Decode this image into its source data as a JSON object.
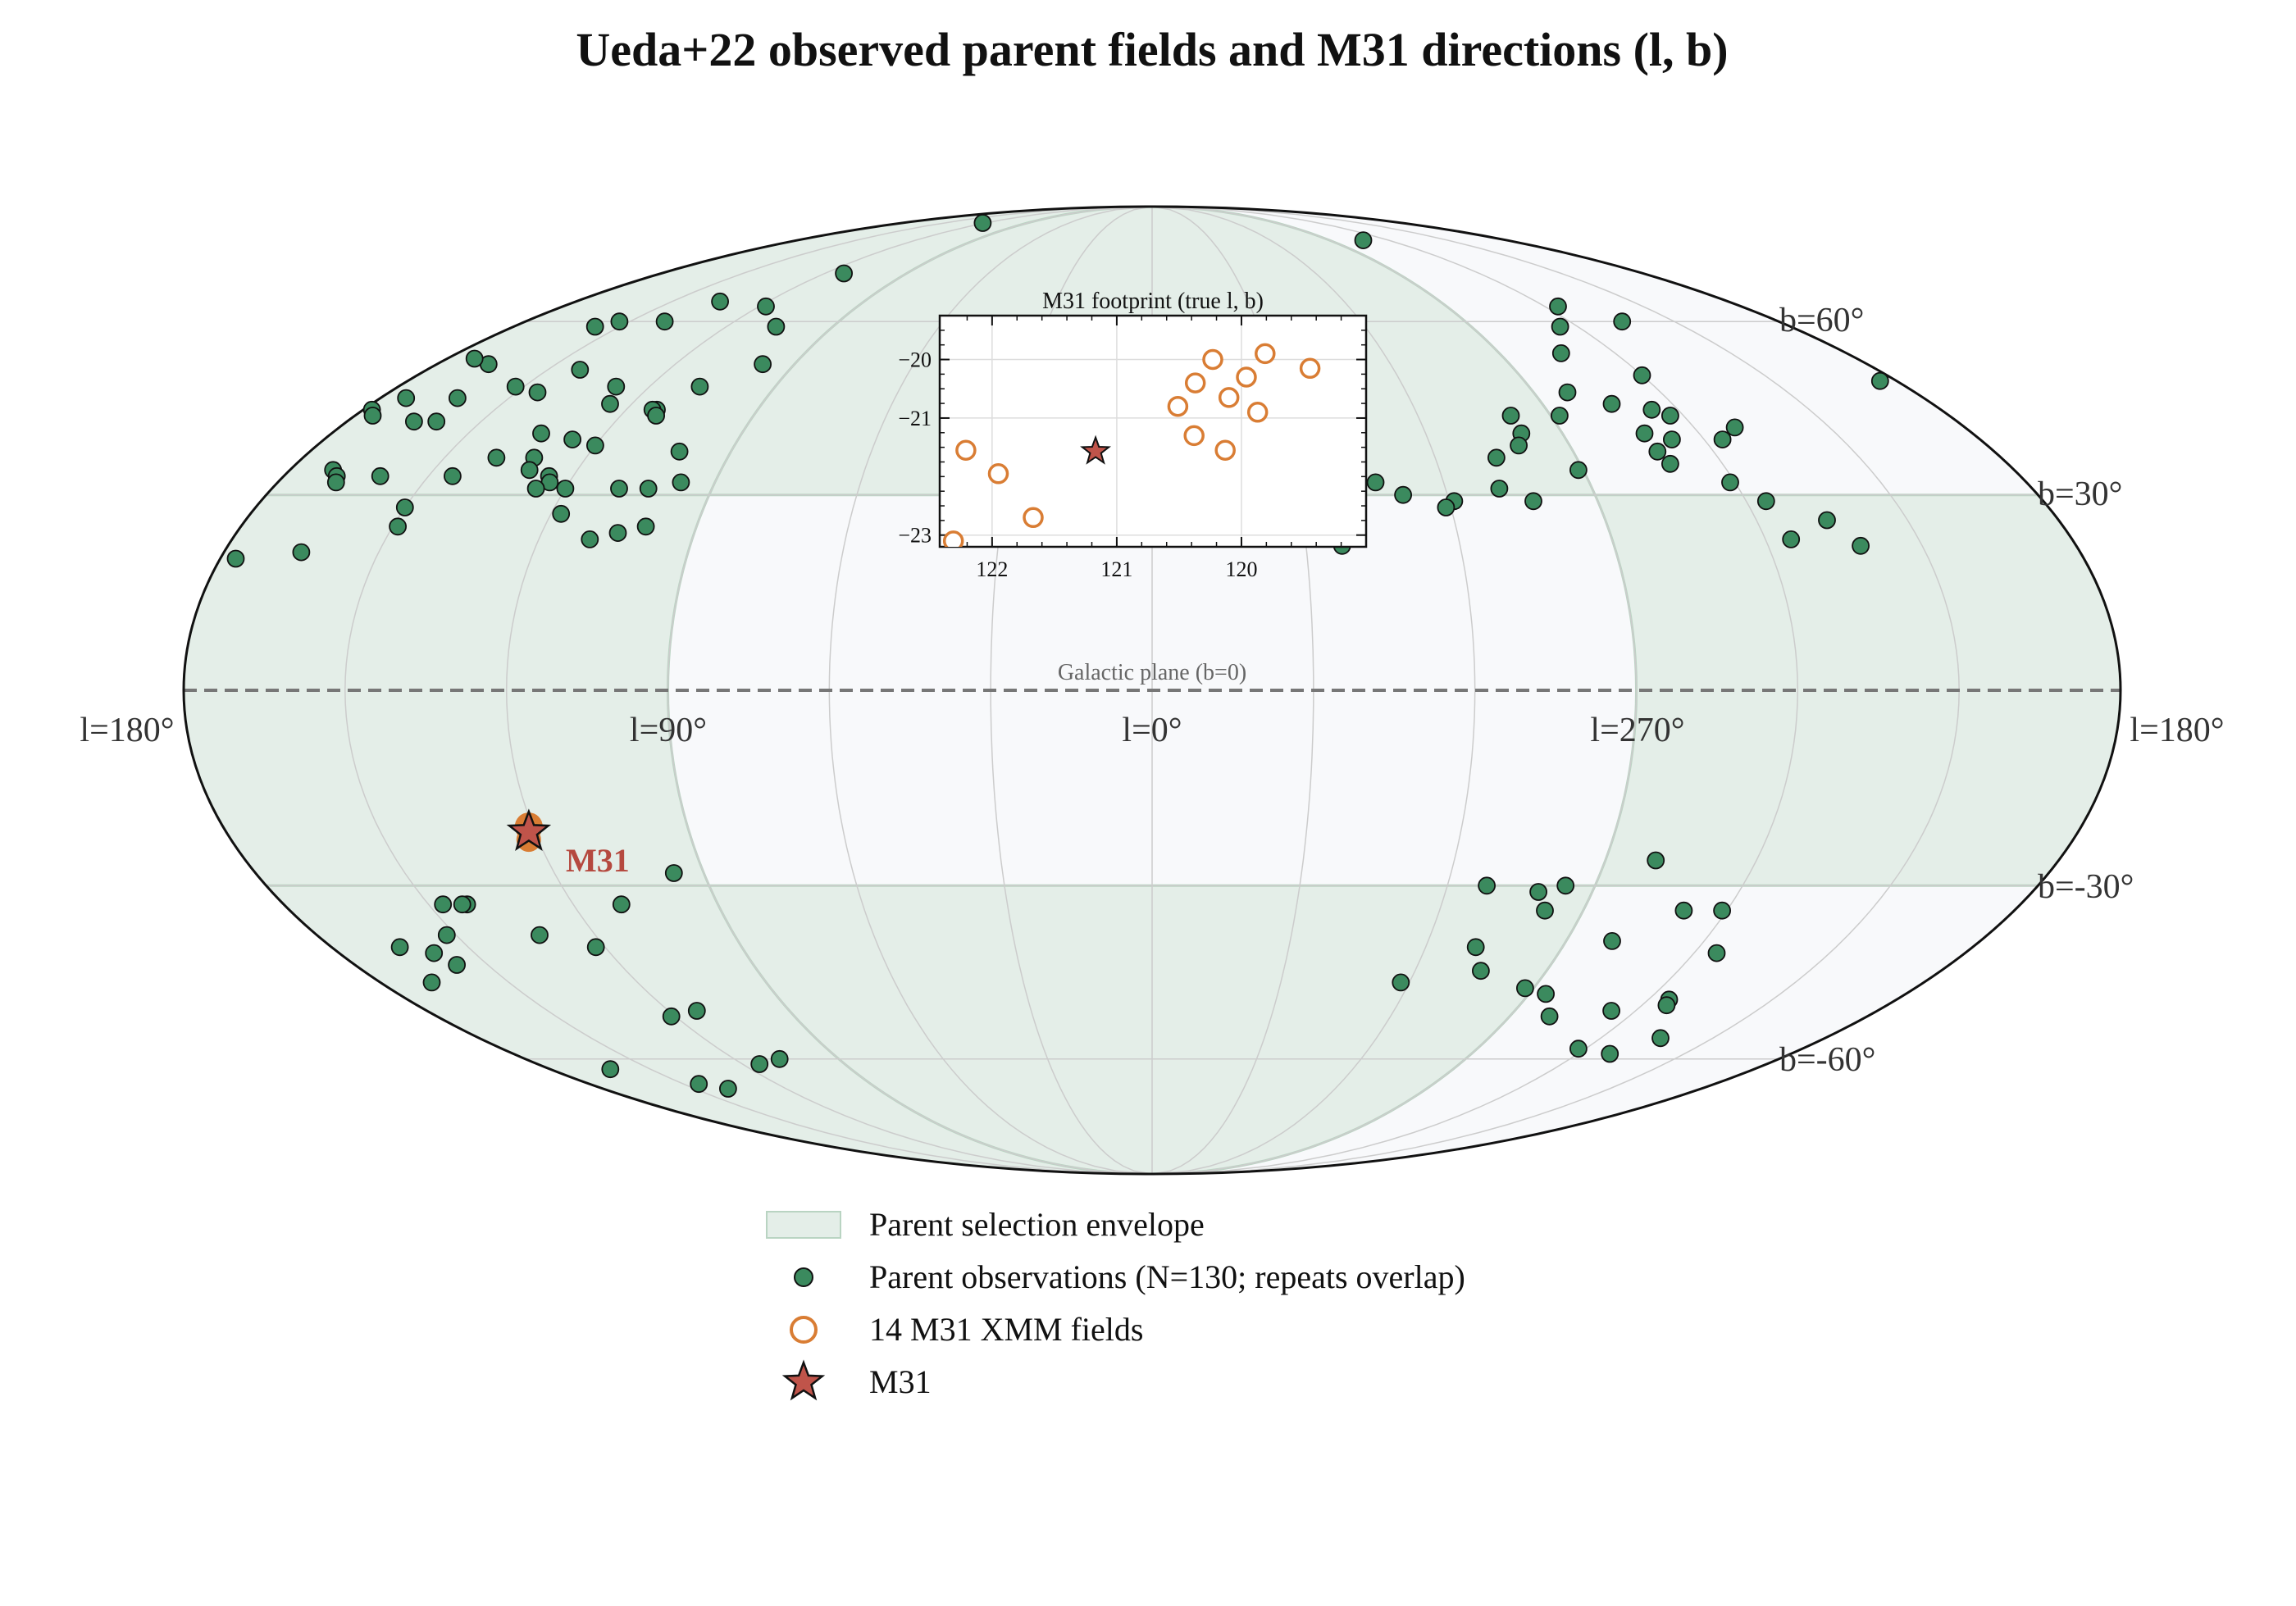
{
  "title": "Ueda+22 observed parent fields and M31 directions (l, b)",
  "plane_label": "Galactic plane (b=0)",
  "m31_label": "M31",
  "colors": {
    "envelope_fill": "#e4eee8",
    "envelope_edge": "#b9d4c2",
    "map_background": "#f8f9fb",
    "parent_point": "#3b8a5e",
    "m31_field": "#d97d34",
    "m31_star": "#c0544a",
    "grid": "#cccccc",
    "plane_line": "#777777"
  },
  "chart_data": {
    "type": "scatter",
    "projection": "mollweide",
    "longitude_convention": "l increases to the left; l=0 at center, l=180 at both edges",
    "x_tick_labels": [
      "l=180°",
      "l=90°",
      "l=0°",
      "l=270°",
      "l=180°"
    ],
    "y_tick_labels": [
      "b=60°",
      "b=30°",
      "b=-30°",
      "b=-60°"
    ],
    "envelope": {
      "description": "|b| >= 30° or 90° <= l <= 270°",
      "min_abs_b_all": 30,
      "l_range_near_plane": [
        90,
        270
      ]
    },
    "series": [
      {
        "name": "Parent observations (N=130; repeats overlap)",
        "points": [
          {
            "l": 122,
            "b": 83
          },
          {
            "l": 253,
            "b": 78
          },
          {
            "l": 113,
            "b": 70
          },
          {
            "l": 135,
            "b": 64
          },
          {
            "l": 118,
            "b": 63
          },
          {
            "l": 140,
            "b": 60
          },
          {
            "l": 153,
            "b": 60
          },
          {
            "l": 157,
            "b": 59
          },
          {
            "l": 106,
            "b": 59
          },
          {
            "l": 245,
            "b": 59
          },
          {
            "l": 98,
            "b": 52
          },
          {
            "l": 128,
            "b": 48
          },
          {
            "l": 225,
            "b": 60
          },
          {
            "l": 236,
            "b": 63
          },
          {
            "l": 142,
            "b": 51
          },
          {
            "l": 108,
            "b": 48
          },
          {
            "l": 167,
            "b": 52
          },
          {
            "l": 173,
            "b": 53
          },
          {
            "l": 184,
            "b": 49
          },
          {
            "l": 254,
            "b": 54
          },
          {
            "l": 240,
            "b": 50
          },
          {
            "l": 262,
            "b": 47
          },
          {
            "l": 279,
            "b": 43
          },
          {
            "l": 145,
            "b": 47
          },
          {
            "l": 152,
            "b": 48
          },
          {
            "l": 162,
            "b": 46
          },
          {
            "l": 174,
            "b": 46
          },
          {
            "l": 178,
            "b": 44
          },
          {
            "l": 125,
            "b": 45
          },
          {
            "l": 113,
            "b": 44
          },
          {
            "l": 114,
            "b": 44
          },
          {
            "l": 112,
            "b": 43
          },
          {
            "l": 126,
            "b": 39
          },
          {
            "l": 120,
            "b": 38
          },
          {
            "l": 134,
            "b": 40
          },
          {
            "l": 160,
            "b": 42
          },
          {
            "l": 165,
            "b": 42
          },
          {
            "l": 176,
            "b": 43
          },
          {
            "l": 131,
            "b": 36
          },
          {
            "l": 139,
            "b": 36
          },
          {
            "l": 130,
            "b": 34
          },
          {
            "l": 125,
            "b": 33
          },
          {
            "l": 101,
            "b": 37
          },
          {
            "l": 97,
            "b": 32
          },
          {
            "l": 120,
            "b": 31
          },
          {
            "l": 124,
            "b": 32
          },
          {
            "l": 126,
            "b": 31
          },
          {
            "l": 109,
            "b": 31
          },
          {
            "l": 103,
            "b": 31
          },
          {
            "l": 160,
            "b": 33
          },
          {
            "l": 254,
            "b": 45
          },
          {
            "l": 246,
            "b": 44
          },
          {
            "l": 243,
            "b": 43
          },
          {
            "l": 231,
            "b": 41
          },
          {
            "l": 236,
            "b": 39
          },
          {
            "l": 247,
            "b": 39
          },
          {
            "l": 252,
            "b": 37
          },
          {
            "l": 268,
            "b": 43
          },
          {
            "l": 279,
            "b": 40
          },
          {
            "l": 281,
            "b": 38
          },
          {
            "l": 287,
            "b": 36
          },
          {
            "l": 251,
            "b": 35
          },
          {
            "l": 271,
            "b": 34
          },
          {
            "l": 289,
            "b": 31
          },
          {
            "l": 299,
            "b": 29
          },
          {
            "l": 309,
            "b": 30
          },
          {
            "l": 314,
            "b": 32
          },
          {
            "l": 241,
            "b": 32
          },
          {
            "l": 236,
            "b": 29
          },
          {
            "l": 283,
            "b": 29
          },
          {
            "l": 301,
            "b": 28
          },
          {
            "l": 226,
            "b": 26
          },
          {
            "l": 252,
            "b": 40
          },
          {
            "l": 171,
            "b": 34
          },
          {
            "l": 169,
            "b": 33
          },
          {
            "l": 235,
            "b": 23
          },
          {
            "l": 168,
            "b": 32
          },
          {
            "l": 150,
            "b": 28
          },
          {
            "l": 145,
            "b": 33
          },
          {
            "l": 149,
            "b": 25
          },
          {
            "l": 118,
            "b": 27
          },
          {
            "l": 105,
            "b": 24
          },
          {
            "l": 110,
            "b": 23
          },
          {
            "l": 165,
            "b": 21
          },
          {
            "l": 100,
            "b": 25
          },
          {
            "l": 323,
            "b": 22
          },
          {
            "l": 177,
            "b": 20
          },
          {
            "l": 222,
            "b": 22
          },
          {
            "l": 96,
            "b": -28
          },
          {
            "l": 110,
            "b": -33
          },
          {
            "l": 142,
            "b": -33
          },
          {
            "l": 143,
            "b": -33
          },
          {
            "l": 147,
            "b": -33
          },
          {
            "l": 132,
            "b": -38
          },
          {
            "l": 122,
            "b": -40
          },
          {
            "l": 152,
            "b": -38
          },
          {
            "l": 165,
            "b": -40
          },
          {
            "l": 159,
            "b": -41
          },
          {
            "l": 157,
            "b": -43
          },
          {
            "l": 168,
            "b": -46
          },
          {
            "l": 260,
            "b": -26
          },
          {
            "l": 249,
            "b": -34
          },
          {
            "l": 241,
            "b": -34
          },
          {
            "l": 235,
            "b": -41
          },
          {
            "l": 260,
            "b": -39
          },
          {
            "l": 278,
            "b": -34
          },
          {
            "l": 276,
            "b": -30
          },
          {
            "l": 292,
            "b": -30
          },
          {
            "l": 289,
            "b": -40
          },
          {
            "l": 285,
            "b": -44
          },
          {
            "l": 302,
            "b": -46
          },
          {
            "l": 272,
            "b": -47
          },
          {
            "l": 281,
            "b": -31
          },
          {
            "l": 235,
            "b": -49
          },
          {
            "l": 234,
            "b": -50
          },
          {
            "l": 246,
            "b": -51
          },
          {
            "l": 266,
            "b": -48
          },
          {
            "l": 260,
            "b": -52
          },
          {
            "l": 224,
            "b": -56
          },
          {
            "l": 231,
            "b": -59
          },
          {
            "l": 242,
            "b": -58
          },
          {
            "l": 113,
            "b": -51
          },
          {
            "l": 121,
            "b": -52
          },
          {
            "l": 139,
            "b": -66
          },
          {
            "l": 145,
            "b": -65
          },
          {
            "l": 162,
            "b": -62
          },
          {
            "l": 115,
            "b": -61
          },
          {
            "l": 107,
            "b": -60
          }
        ]
      },
      {
        "name": "14 M31 XMM fields",
        "points": [
          {
            "l": 121.2,
            "b": -21.6
          }
        ]
      },
      {
        "name": "M31",
        "points": [
          {
            "l": 121.17,
            "b": -21.57
          }
        ]
      }
    ],
    "inset": {
      "title": "M31 footprint (true l, b)",
      "x_ticks": [
        "122",
        "121",
        "120"
      ],
      "y_ticks": [
        "−20",
        "−21",
        "−23"
      ],
      "xlim": [
        122.42,
        119.0
      ],
      "ylim": [
        -23.2,
        -19.25
      ],
      "fields": [
        {
          "l": 122.31,
          "b": -23.1
        },
        {
          "l": 122.21,
          "b": -21.55
        },
        {
          "l": 121.95,
          "b": -21.95
        },
        {
          "l": 121.67,
          "b": -22.7
        },
        {
          "l": 120.51,
          "b": -20.8
        },
        {
          "l": 120.37,
          "b": -20.4
        },
        {
          "l": 120.38,
          "b": -21.3
        },
        {
          "l": 120.23,
          "b": -20.0
        },
        {
          "l": 120.1,
          "b": -20.65
        },
        {
          "l": 120.13,
          "b": -21.55
        },
        {
          "l": 119.96,
          "b": -20.3
        },
        {
          "l": 119.87,
          "b": -20.9
        },
        {
          "l": 119.81,
          "b": -19.9
        },
        {
          "l": 119.45,
          "b": -20.15
        }
      ],
      "m31": {
        "l": 121.17,
        "b": -21.57
      }
    }
  },
  "legend": {
    "placement": "below map, centered",
    "items": [
      {
        "label": "Parent selection envelope",
        "marker": "envelope-swatch"
      },
      {
        "label": "Parent observations (N=130; repeats overlap)",
        "marker": "green-dot"
      },
      {
        "label": "14 M31 XMM fields",
        "marker": "orange-ring"
      },
      {
        "label": "M31",
        "marker": "red-star"
      }
    ]
  }
}
